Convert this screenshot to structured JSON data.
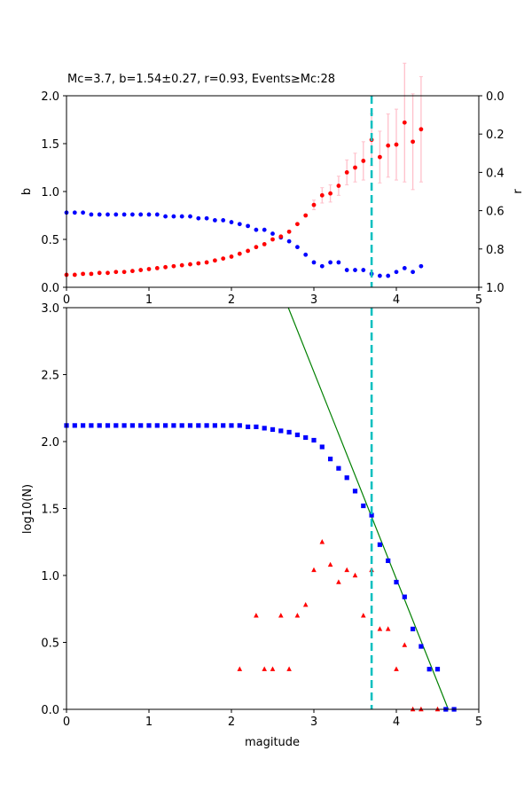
{
  "title": "Mc=3.7, b=1.54±0.27, r=0.93, Events≥Mc:28",
  "colors": {
    "b_series": "#ff0000",
    "b_errorbar": "#ffc0cb",
    "r_series": "#0000ff",
    "mc_line": "#00bfbf",
    "cumulative": "#0000ff",
    "noncumulative": "#ff0000",
    "fit_line": "#008000"
  },
  "chart_data": [
    {
      "type": "scatter",
      "panel": "top",
      "xlim": [
        0,
        5
      ],
      "ylim_left": [
        0,
        2
      ],
      "ylim_right": [
        1,
        0
      ],
      "ylabel_left": "b",
      "ylabel_right": "r",
      "x_ticks": [
        "0",
        "1",
        "2",
        "3",
        "4",
        "5"
      ],
      "y_left_ticks": [
        "0.0",
        "0.5",
        "1.0",
        "1.5",
        "2.0"
      ],
      "y_right_ticks": [
        "0.0",
        "0.2",
        "0.4",
        "0.6",
        "0.8",
        "1.0"
      ],
      "mc_vline": 3.7,
      "series": [
        {
          "role": "b",
          "x": [
            0.0,
            0.1,
            0.2,
            0.3,
            0.4,
            0.5,
            0.6,
            0.7,
            0.8,
            0.9,
            1.0,
            1.1,
            1.2,
            1.3,
            1.4,
            1.5,
            1.6,
            1.7,
            1.8,
            1.9,
            2.0,
            2.1,
            2.2,
            2.3,
            2.4,
            2.5,
            2.6,
            2.7,
            2.8,
            2.9,
            3.0,
            3.1,
            3.2,
            3.3,
            3.4,
            3.5,
            3.6,
            3.7,
            3.8,
            3.9,
            4.0,
            4.1,
            4.2,
            4.3
          ],
          "y": [
            0.13,
            0.13,
            0.14,
            0.14,
            0.15,
            0.15,
            0.16,
            0.16,
            0.17,
            0.18,
            0.19,
            0.2,
            0.21,
            0.22,
            0.23,
            0.24,
            0.25,
            0.26,
            0.28,
            0.3,
            0.32,
            0.35,
            0.38,
            0.42,
            0.45,
            0.5,
            0.53,
            0.58,
            0.66,
            0.75,
            0.86,
            0.96,
            0.98,
            1.06,
            1.2,
            1.25,
            1.32,
            1.54,
            1.36,
            1.48,
            1.49,
            1.72,
            1.52,
            1.65
          ],
          "err": [
            0.0,
            0.0,
            0.0,
            0.0,
            0.0,
            0.0,
            0.0,
            0.0,
            0.0,
            0.0,
            0.0,
            0.0,
            0.0,
            0.0,
            0.0,
            0.0,
            0.0,
            0.0,
            0.0,
            0.0,
            0.0,
            0.0,
            0.0,
            0.0,
            0.0,
            0.0,
            0.0,
            0.0,
            0.0,
            0.0,
            0.05,
            0.08,
            0.09,
            0.1,
            0.13,
            0.15,
            0.2,
            0.27,
            0.27,
            0.33,
            0.37,
            0.62,
            0.5,
            0.55
          ]
        },
        {
          "role": "r",
          "x": [
            0.0,
            0.1,
            0.2,
            0.3,
            0.4,
            0.5,
            0.6,
            0.7,
            0.8,
            0.9,
            1.0,
            1.1,
            1.2,
            1.3,
            1.4,
            1.5,
            1.6,
            1.7,
            1.8,
            1.9,
            2.0,
            2.1,
            2.2,
            2.3,
            2.4,
            2.5,
            2.6,
            2.7,
            2.8,
            2.9,
            3.0,
            3.1,
            3.2,
            3.3,
            3.4,
            3.5,
            3.6,
            3.7,
            3.8,
            3.9,
            4.0,
            4.1,
            4.2,
            4.3
          ],
          "y": [
            0.61,
            0.61,
            0.61,
            0.62,
            0.62,
            0.62,
            0.62,
            0.62,
            0.62,
            0.62,
            0.62,
            0.62,
            0.63,
            0.63,
            0.63,
            0.63,
            0.64,
            0.64,
            0.65,
            0.65,
            0.66,
            0.67,
            0.68,
            0.7,
            0.7,
            0.72,
            0.74,
            0.76,
            0.79,
            0.83,
            0.87,
            0.89,
            0.87,
            0.87,
            0.91,
            0.91,
            0.91,
            0.93,
            0.94,
            0.94,
            0.92,
            0.9,
            0.92,
            0.89
          ]
        }
      ]
    },
    {
      "type": "scatter",
      "panel": "bottom",
      "xlim": [
        0,
        5
      ],
      "ylim": [
        0,
        3
      ],
      "xlabel": "magitude",
      "ylabel": "log10(N)",
      "x_ticks": [
        "0",
        "1",
        "2",
        "3",
        "4",
        "5"
      ],
      "y_ticks": [
        "0.0",
        "0.5",
        "1.0",
        "1.5",
        "2.0",
        "2.5",
        "3.0"
      ],
      "mc_vline": 3.7,
      "fit_line": {
        "x": [
          2.69,
          4.63
        ],
        "y": [
          3.0,
          0.0
        ]
      },
      "series": [
        {
          "role": "cumulative",
          "marker": "square",
          "x": [
            0.0,
            0.1,
            0.2,
            0.3,
            0.4,
            0.5,
            0.6,
            0.7,
            0.8,
            0.9,
            1.0,
            1.1,
            1.2,
            1.3,
            1.4,
            1.5,
            1.6,
            1.7,
            1.8,
            1.9,
            2.0,
            2.1,
            2.2,
            2.3,
            2.4,
            2.5,
            2.6,
            2.7,
            2.8,
            2.9,
            3.0,
            3.1,
            3.2,
            3.3,
            3.4,
            3.5,
            3.6,
            3.7,
            3.8,
            3.9,
            4.0,
            4.1,
            4.2,
            4.3,
            4.4,
            4.5,
            4.6,
            4.7
          ],
          "y": [
            2.12,
            2.12,
            2.12,
            2.12,
            2.12,
            2.12,
            2.12,
            2.12,
            2.12,
            2.12,
            2.12,
            2.12,
            2.12,
            2.12,
            2.12,
            2.12,
            2.12,
            2.12,
            2.12,
            2.12,
            2.12,
            2.12,
            2.11,
            2.11,
            2.1,
            2.09,
            2.08,
            2.07,
            2.05,
            2.03,
            2.01,
            1.96,
            1.87,
            1.8,
            1.73,
            1.63,
            1.52,
            1.45,
            1.23,
            1.11,
            0.95,
            0.84,
            0.6,
            0.47,
            0.3,
            0.3,
            0.0,
            0.0
          ]
        },
        {
          "role": "noncumulative",
          "marker": "triangle",
          "x": [
            2.1,
            2.3,
            2.4,
            2.5,
            2.6,
            2.7,
            2.8,
            2.9,
            3.0,
            3.1,
            3.2,
            3.3,
            3.4,
            3.5,
            3.6,
            3.7,
            3.8,
            3.9,
            4.0,
            4.1,
            4.2,
            4.3,
            4.5
          ],
          "y": [
            0.3,
            0.7,
            0.3,
            0.3,
            0.7,
            0.3,
            0.7,
            0.78,
            1.04,
            1.25,
            1.08,
            0.95,
            1.04,
            1.0,
            0.7,
            1.04,
            0.6,
            0.6,
            0.3,
            0.48,
            0.0,
            0.0,
            0.0
          ]
        }
      ]
    }
  ]
}
